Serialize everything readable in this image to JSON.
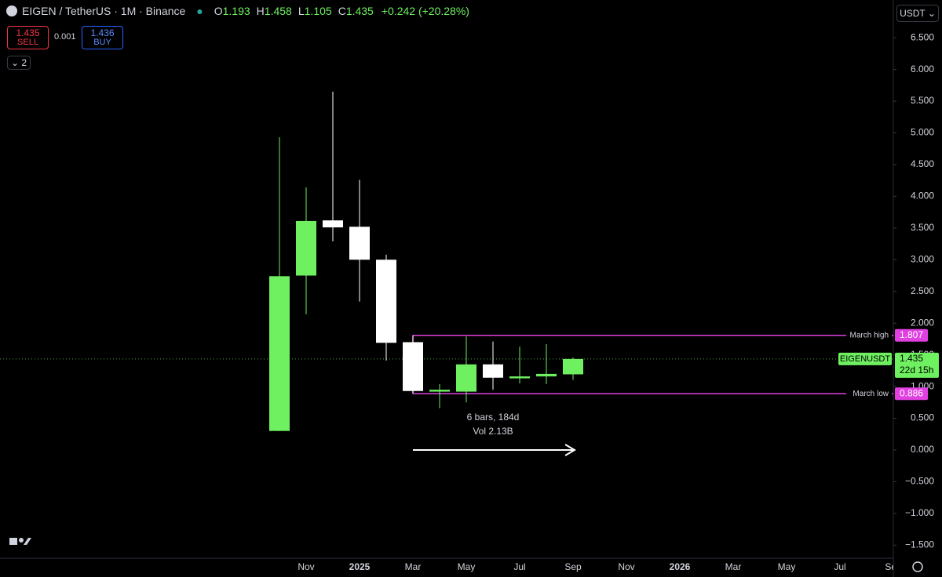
{
  "chart_data": {
    "type": "candlestick",
    "title": "EIGEN / TetherUS · 1M · Binance",
    "categories": [
      null,
      "Nov",
      null,
      "2025",
      null,
      "Mar",
      null,
      "May",
      null,
      "Jul",
      null,
      "Sep",
      null,
      "Nov",
      null,
      "2026",
      null,
      "Mar",
      null,
      "May",
      null,
      "Jul",
      null,
      "Sep"
    ],
    "open": [
      0.3,
      2.75,
      3.62,
      3.52,
      3.0,
      1.7,
      0.92,
      0.92,
      1.35,
      1.13,
      1.16,
      1.193,
      null,
      null,
      null,
      null,
      null,
      null,
      null,
      null,
      null,
      null,
      null,
      null
    ],
    "high": [
      4.93,
      4.14,
      5.65,
      4.26,
      3.08,
      1.807,
      1.04,
      1.79,
      1.71,
      1.63,
      1.67,
      1.458,
      null,
      null,
      null,
      null,
      null,
      null,
      null,
      null,
      null,
      null,
      null,
      null
    ],
    "low": [
      0.3,
      2.14,
      3.29,
      2.34,
      1.41,
      0.886,
      0.66,
      0.75,
      0.95,
      1.05,
      1.04,
      1.105,
      null,
      null,
      null,
      null,
      null,
      null,
      null,
      null,
      null,
      null,
      null,
      null
    ],
    "close": [
      2.74,
      3.61,
      3.51,
      3.0,
      1.69,
      0.93,
      0.95,
      1.35,
      1.14,
      1.16,
      1.2,
      1.435,
      null,
      null,
      null,
      null,
      null,
      null,
      null,
      null,
      null,
      null,
      null,
      null
    ],
    "up_color": "#6ef060",
    "down_color": "#ffffff",
    "annotation_color": "#e040e0",
    "ylim": [
      -1.706,
      7.095
    ],
    "yticks": [
      {
        "value": 6.5,
        "label": "6.500"
      },
      {
        "value": 6,
        "label": "6.000"
      },
      {
        "value": 5.5,
        "label": "5.500"
      },
      {
        "value": 5,
        "label": "5.000"
      },
      {
        "value": 4.5,
        "label": "4.500"
      },
      {
        "value": 4,
        "label": "4.000"
      },
      {
        "value": 3.5,
        "label": "3.500"
      },
      {
        "value": 3,
        "label": "3.000"
      },
      {
        "value": 2.5,
        "label": "2.500"
      },
      {
        "value": 2,
        "label": "2.000"
      },
      {
        "value": 1.5,
        "label": "1.500"
      },
      {
        "value": 1,
        "label": "1.000"
      },
      {
        "value": 0.5,
        "label": "0.500"
      },
      {
        "value": 0,
        "label": "0.000"
      },
      {
        "value": -0.5,
        "label": "−0.500"
      },
      {
        "value": -1,
        "label": "−1.000"
      },
      {
        "value": -1.5,
        "label": "−1.500"
      }
    ],
    "currency": "USDT",
    "ohlc_legend": [
      {
        "label": "O",
        "value": 1.193
      },
      {
        "label": "H",
        "value": 1.458
      },
      {
        "label": "L",
        "value": 1.105
      },
      {
        "label": "C",
        "value": 1.435
      }
    ],
    "change": "+0.242 (+20.28%)",
    "trade": {
      "sell": 1.435,
      "sell_label": "SELL",
      "spread": 0.001,
      "buy": 1.436,
      "buy_label": "BUY"
    },
    "indicator_count": "2",
    "price_line": {
      "label": "EIGENUSDT",
      "value": 1.435,
      "countdown": "22d 15h"
    },
    "annotations": [
      {
        "label": "March high",
        "value": 1.807
      },
      {
        "label": "March low",
        "value": 0.886
      }
    ],
    "measure": {
      "text": "6 bars, 184d",
      "volume": "Vol 2.13B"
    }
  }
}
